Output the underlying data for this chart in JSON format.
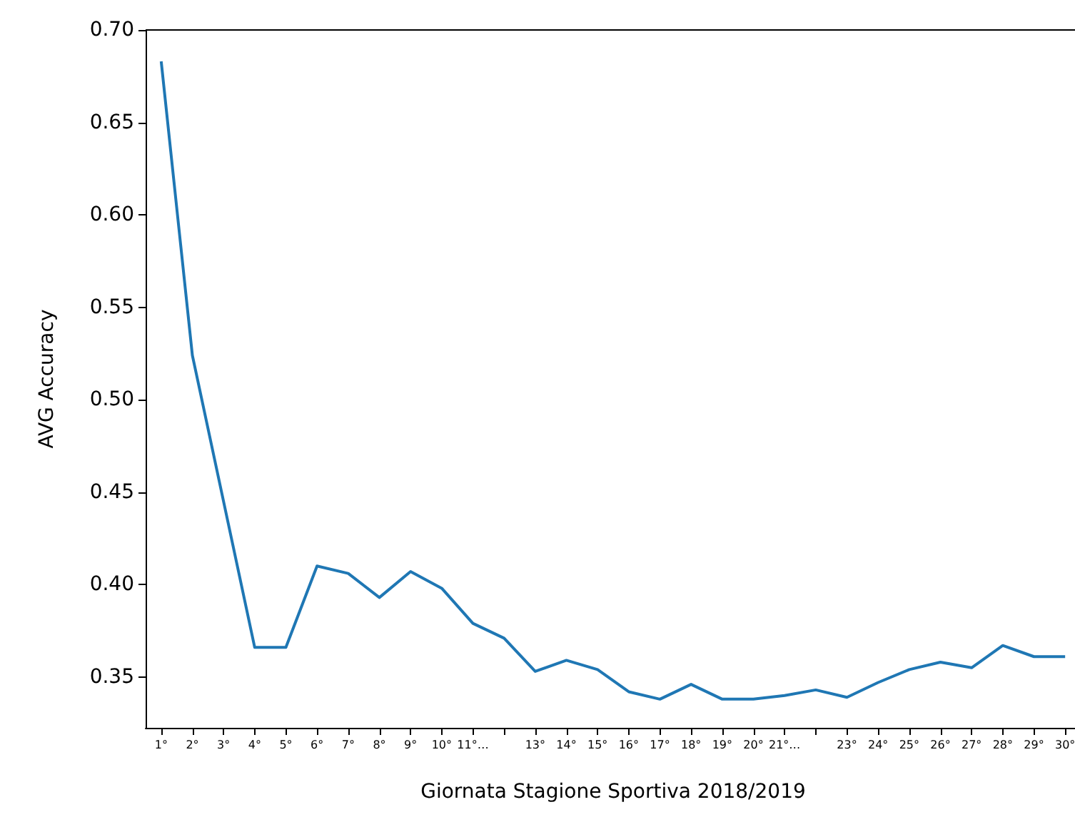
{
  "chart_data": {
    "type": "line",
    "xlabel": "Giornata Stagione Sportiva 2018/2019",
    "ylabel": "AVG Accuracy",
    "categories": [
      "1°",
      "2°",
      "3°",
      "4°",
      "5°",
      "6°",
      "7°",
      "8°",
      "9°",
      "10°",
      "11°…",
      null,
      "13°",
      "14°",
      "15°",
      "16°",
      "17°",
      "18°",
      "19°",
      "20°",
      "21°…",
      null,
      "23°",
      "24°",
      "25°",
      "26°",
      "27°",
      "28°",
      "29°",
      "30°"
    ],
    "series": [
      {
        "color": "#1f77b4",
        "values": [
          0.683,
          0.524,
          0.445,
          0.366,
          0.366,
          0.41,
          0.406,
          0.393,
          0.407,
          0.398,
          0.379,
          0.371,
          0.353,
          0.359,
          0.354,
          0.342,
          0.338,
          0.346,
          0.338,
          0.338,
          0.34,
          0.343,
          0.339,
          0.347,
          0.354,
          0.358,
          0.355,
          0.367,
          0.361,
          0.361
        ]
      }
    ],
    "ylim": [
      0.3225,
      0.7
    ],
    "yticks": [
      0.35,
      {
        "value": 0.4,
        "label": "0.40"
      },
      0.45,
      {
        "value": 0.5,
        "label": "0.50"
      },
      0.55,
      {
        "value": 0.6,
        "label": "0.60"
      },
      0.65,
      {
        "value": 0.7,
        "label": "0.70"
      }
    ],
    "grid": false,
    "marker": "none",
    "line_style": "solid"
  }
}
